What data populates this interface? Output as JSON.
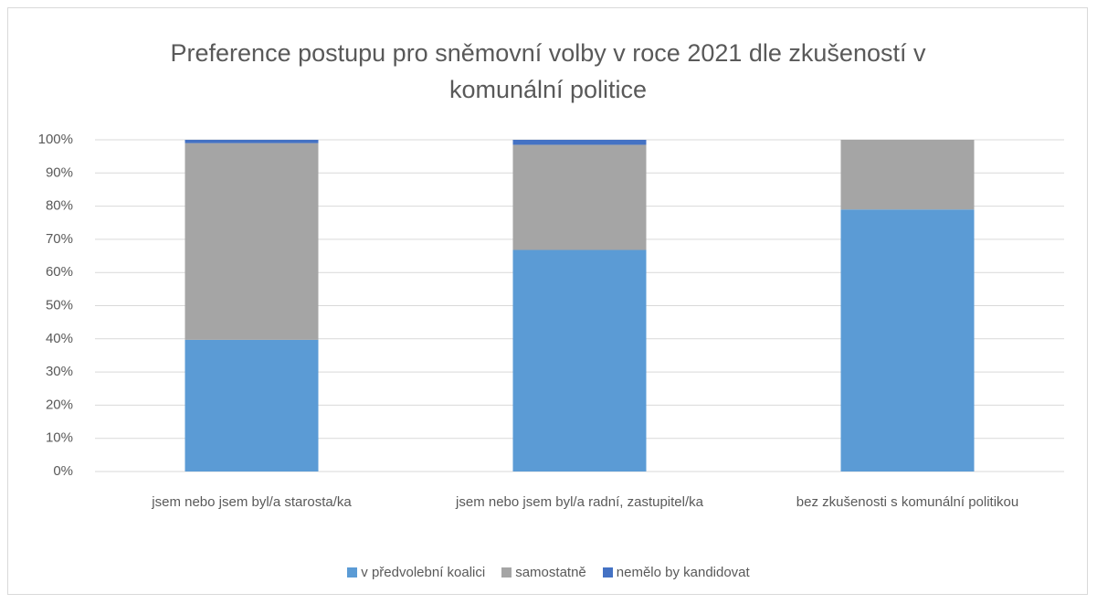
{
  "chart_data": {
    "type": "bar",
    "stacked": true,
    "title": "Preference postupu pro sněmovní volby v roce 2021 dle zkušeností v komunální politice",
    "categories": [
      "jsem nebo jsem byl/a starosta/ka",
      "jsem nebo jsem byl/a radní, zastupitel/ka",
      "bez zkušenosti s komunální politikou"
    ],
    "series": [
      {
        "name": "v předvolební koalici",
        "color": "#5b9bd5",
        "values": [
          39.7,
          66.8,
          79
        ]
      },
      {
        "name": "samostatně",
        "color": "#a5a5a5",
        "values": [
          59.3,
          31.7,
          21
        ]
      },
      {
        "name": "nemělo by kandidovat",
        "color": "#4472c4",
        "values": [
          1.0,
          1.5,
          0
        ]
      }
    ],
    "ylim": [
      0,
      100
    ],
    "yticks": [
      {
        "value": 0,
        "label": "0%"
      },
      {
        "value": 10,
        "label": "10%"
      },
      {
        "value": 20,
        "label": "20%"
      },
      {
        "value": 30,
        "label": "30%"
      },
      {
        "value": 40,
        "label": "40%"
      },
      {
        "value": 50,
        "label": "50%"
      },
      {
        "value": 60,
        "label": "60%"
      },
      {
        "value": 70,
        "label": "70%"
      },
      {
        "value": 80,
        "label": "80%"
      },
      {
        "value": 90,
        "label": "90%"
      },
      {
        "value": 100,
        "label": "100%"
      }
    ],
    "grid": true,
    "legend": "bottom"
  }
}
